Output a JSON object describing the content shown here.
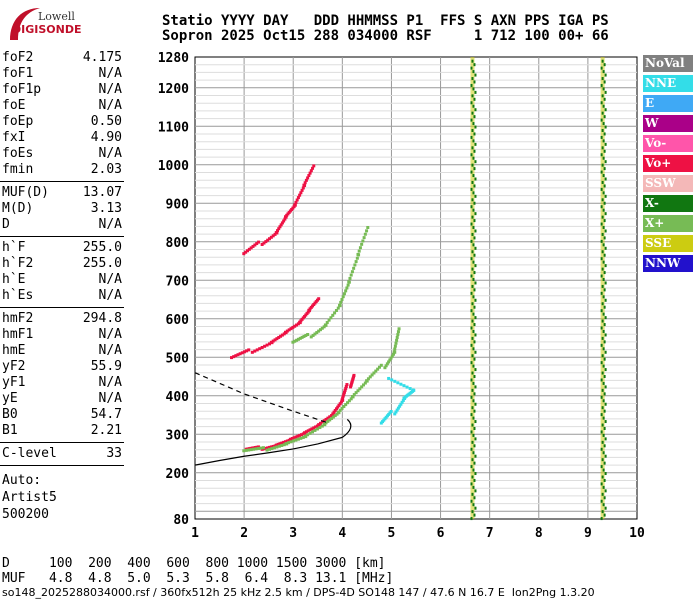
{
  "logo": {
    "line1": "Lowell",
    "line2": "DIGISONDE"
  },
  "header": {
    "line1": "Statio YYYY DAY   DDD HHMMSS P1  FFS S AXN PPS IGA PS",
    "line2": "Sopron 2025 Oct15 288 034000 RSF     1 712 100 00+ 66"
  },
  "params_group1": [
    {
      "label": "foF2",
      "value": "4.175"
    },
    {
      "label": "foF1",
      "value": "N/A"
    },
    {
      "label": "foF1p",
      "value": "N/A"
    },
    {
      "label": "foE",
      "value": "N/A"
    },
    {
      "label": "foEp",
      "value": "0.50"
    },
    {
      "label": "fxI",
      "value": "4.90"
    },
    {
      "label": "foEs",
      "value": "N/A"
    },
    {
      "label": "fmin",
      "value": "2.03"
    }
  ],
  "params_group2": [
    {
      "label": "MUF(D)",
      "value": "13.07"
    },
    {
      "label": "M(D)",
      "value": "3.13"
    },
    {
      "label": "D",
      "value": "N/A"
    }
  ],
  "params_group3": [
    {
      "label": "h`F",
      "value": "255.0"
    },
    {
      "label": "h`F2",
      "value": "255.0"
    },
    {
      "label": "h`E",
      "value": "N/A"
    },
    {
      "label": "h`Es",
      "value": "N/A"
    }
  ],
  "params_group4": [
    {
      "label": "hmF2",
      "value": "294.8"
    },
    {
      "label": "hmF1",
      "value": "N/A"
    },
    {
      "label": "hmE",
      "value": "N/A"
    },
    {
      "label": "yF2",
      "value": "55.9"
    },
    {
      "label": "yF1",
      "value": "N/A"
    },
    {
      "label": "yE",
      "value": "N/A"
    },
    {
      "label": "B0",
      "value": "54.7"
    },
    {
      "label": "B1",
      "value": "2.21"
    }
  ],
  "params_group5": [
    {
      "label": "C-level",
      "value": "33"
    }
  ],
  "auto": {
    "label": "Auto:",
    "artist": "Artist5",
    "version": "500200"
  },
  "legend": [
    {
      "label": "NoVal",
      "color": "#808080"
    },
    {
      "label": "NNE",
      "color": "#33dde8"
    },
    {
      "label": "E",
      "color": "#3fa9f5"
    },
    {
      "label": "W",
      "color": "#aa0088"
    },
    {
      "label": "Vo-",
      "color": "#ff55aa"
    },
    {
      "label": "Vo+",
      "color": "#ee1144"
    },
    {
      "label": "SSW",
      "color": "#f4b8b8"
    },
    {
      "label": "X-",
      "color": "#117711"
    },
    {
      "label": "X+",
      "color": "#77bb55"
    },
    {
      "label": "SSE",
      "color": "#cccc11"
    },
    {
      "label": "NNW",
      "color": "#2211cc"
    }
  ],
  "dmuf": {
    "line1": "D     100  200  400  600  800 1000 1500 3000 [km]",
    "line2": "MUF   4.8  4.8  5.0  5.3  5.8  6.4  8.3 13.1 [MHz]"
  },
  "footer": "so148_2025288034000.rsf / 360fx512h 25 kHz 2.5 km / DPS-4D SO148 147 / 47.6 N 16.7 E  Ion2Png 1.3.20",
  "chart_data": {
    "type": "scatter",
    "x_axis": {
      "range": [
        1,
        10
      ],
      "ticks": [
        "1",
        "2",
        "3",
        "4",
        "5",
        "6",
        "7",
        "8",
        "9",
        "10"
      ]
    },
    "y_axis": {
      "range": [
        80,
        1280
      ],
      "ticks": [
        "80",
        "200",
        "300",
        "400",
        "500",
        "600",
        "700",
        "800",
        "900",
        "1000",
        "1100",
        "1200",
        "1280"
      ]
    },
    "grid": true,
    "traces": [
      {
        "name": "O-trace F2",
        "color": "#ee1144",
        "points": [
          [
            2.05,
            262
          ],
          [
            2.3,
            268
          ],
          [
            2.6,
            278
          ],
          [
            2.9,
            292
          ],
          [
            3.2,
            308
          ],
          [
            3.5,
            328
          ],
          [
            3.8,
            355
          ],
          [
            4.0,
            390
          ],
          [
            4.1,
            430
          ],
          [
            4.17,
            460
          ]
        ]
      },
      {
        "name": "O-trace 2F",
        "color": "#ee1144",
        "points": [
          [
            1.75,
            500
          ],
          [
            2.1,
            520
          ],
          [
            2.5,
            545
          ],
          [
            2.8,
            570
          ],
          [
            3.1,
            595
          ],
          [
            3.3,
            625
          ],
          [
            3.5,
            655
          ]
        ]
      },
      {
        "name": "O-trace 3F",
        "color": "#ee1144",
        "points": [
          [
            2.0,
            770
          ],
          [
            2.3,
            800
          ],
          [
            2.6,
            830
          ],
          [
            2.8,
            870
          ],
          [
            3.0,
            900
          ],
          [
            3.2,
            950
          ],
          [
            3.4,
            1000
          ]
        ]
      },
      {
        "name": "X-trace F2",
        "color": "#77bb55",
        "points": [
          [
            2.0,
            258
          ],
          [
            2.4,
            266
          ],
          [
            2.8,
            282
          ],
          [
            3.2,
            300
          ],
          [
            3.6,
            330
          ],
          [
            3.9,
            360
          ],
          [
            4.2,
            400
          ],
          [
            4.5,
            440
          ],
          [
            4.8,
            480
          ],
          [
            5.0,
            520
          ],
          [
            5.1,
            580
          ]
        ]
      },
      {
        "name": "X-trace 2F",
        "color": "#77bb55",
        "points": [
          [
            3.0,
            540
          ],
          [
            3.3,
            560
          ],
          [
            3.6,
            590
          ],
          [
            3.9,
            640
          ],
          [
            4.1,
            700
          ],
          [
            4.3,
            770
          ],
          [
            4.5,
            840
          ]
        ]
      },
      {
        "name": "Es/other",
        "color": "#33dde8",
        "points": [
          [
            4.8,
            330
          ],
          [
            5.0,
            360
          ],
          [
            5.2,
            400
          ],
          [
            5.4,
            420
          ],
          [
            4.9,
            450
          ]
        ]
      }
    ],
    "profile_curve": {
      "points": [
        [
          1,
          220
        ],
        [
          1.5,
          232
        ],
        [
          2,
          243
        ],
        [
          2.5,
          252
        ],
        [
          3,
          262
        ],
        [
          3.5,
          275
        ],
        [
          4,
          292
        ]
      ]
    },
    "extrapolation": {
      "points": [
        [
          1,
          460
        ],
        [
          2,
          405
        ],
        [
          3,
          360
        ],
        [
          3.7,
          330
        ]
      ]
    },
    "vertical_bands": [
      {
        "x": 6.65,
        "color": "#cccc11",
        "ymin": 80,
        "ymax": 1280
      },
      {
        "x": 9.3,
        "color": "#cccc11",
        "ymin": 80,
        "ymax": 1280
      }
    ]
  }
}
